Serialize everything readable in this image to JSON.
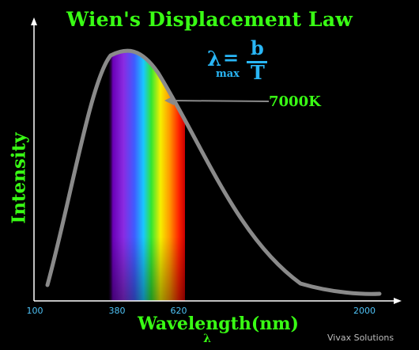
{
  "title": "Wien's Displacement Law",
  "axes": {
    "y_label": "Intensity",
    "x_label": "Wavelength(nm)",
    "x_symbol": "λ",
    "ticks": [
      "100",
      "380",
      "620",
      "2000"
    ]
  },
  "formula": {
    "lambda": "λ",
    "subscript": "max",
    "equals": "=",
    "numerator": "b",
    "denominator": "T"
  },
  "curve_label": "7000K",
  "credit": "Vivax Solutions",
  "colors": {
    "text_green": "#39ff14",
    "tick_blue": "#4fc3f7",
    "formula_blue": "#29b6f6",
    "curve_gray": "#8a8a8a",
    "background": "#000000"
  }
}
